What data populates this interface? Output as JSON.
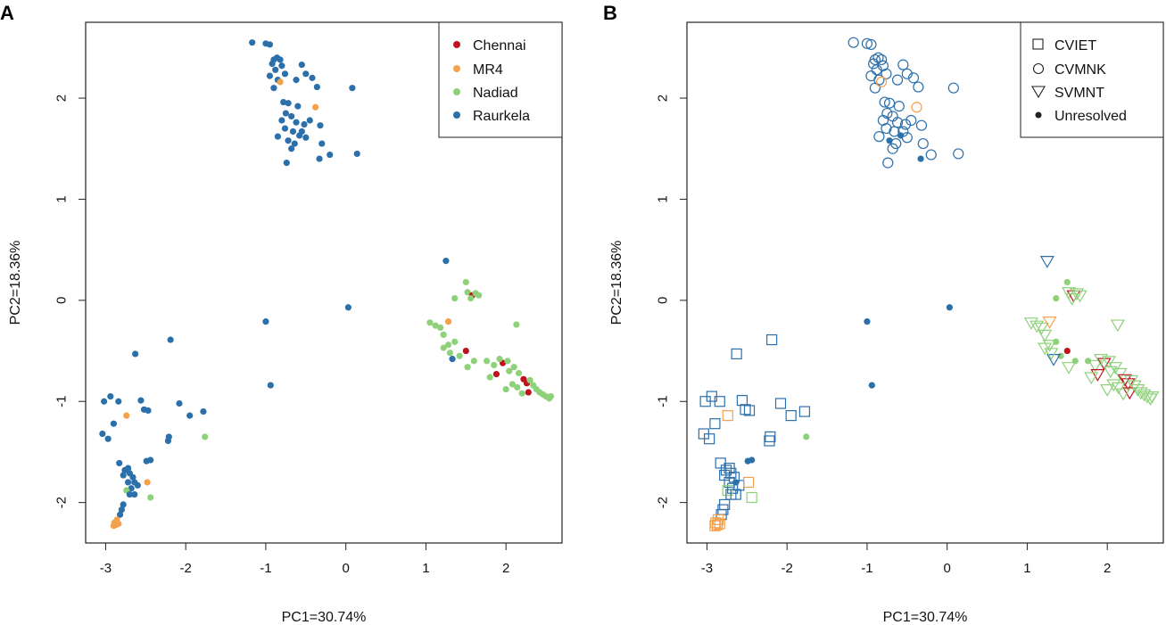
{
  "colors": {
    "Chennai": "#c1121f",
    "MR4": "#f5a04a",
    "Nadiad": "#8fd17a",
    "Raurkela": "#2b6fab",
    "axis": "#222222"
  },
  "chart_data": [
    {
      "panel": "A",
      "type": "scatter",
      "encoding": "color-by-population",
      "xlabel": "PC1=30.74%",
      "ylabel": "PC2=18.36%",
      "xlim": [
        -3.25,
        2.7
      ],
      "ylim": [
        -2.4,
        2.75
      ],
      "xticks": [
        -3,
        -2,
        -1,
        0,
        1,
        2
      ],
      "yticks": [
        -2,
        -1,
        0,
        1,
        2
      ],
      "legend": {
        "position": "top-right",
        "entries": [
          "Chennai",
          "MR4",
          "Nadiad",
          "Raurkela"
        ]
      },
      "grid": false
    },
    {
      "panel": "B",
      "type": "scatter",
      "encoding": "color-by-population, shape-by-lineage",
      "xlabel": "PC1=30.74%",
      "ylabel": "PC2=18.36%",
      "xlim": [
        -3.25,
        2.7
      ],
      "ylim": [
        -2.4,
        2.75
      ],
      "xticks": [
        -3,
        -2,
        -1,
        0,
        1,
        2
      ],
      "yticks": [
        -2,
        -1,
        0,
        1,
        2
      ],
      "legend": {
        "position": "top-right",
        "entries": [
          "CVIET",
          "CVMNK",
          "SVMNT",
          "Unresolved"
        ]
      },
      "grid": false
    }
  ],
  "points": [
    {
      "x": -1.17,
      "y": 2.55,
      "pop": "Raurkela",
      "lin": "CVMNK"
    },
    {
      "x": -1.0,
      "y": 2.54,
      "pop": "Raurkela",
      "lin": "CVMNK"
    },
    {
      "x": -0.95,
      "y": 2.53,
      "pop": "Raurkela",
      "lin": "CVMNK"
    },
    {
      "x": -0.9,
      "y": 2.38,
      "pop": "Raurkela",
      "lin": "CVMNK"
    },
    {
      "x": -0.86,
      "y": 2.4,
      "pop": "Raurkela",
      "lin": "CVMNK"
    },
    {
      "x": -0.82,
      "y": 2.38,
      "pop": "Raurkela",
      "lin": "CVMNK"
    },
    {
      "x": -0.92,
      "y": 2.34,
      "pop": "Raurkela",
      "lin": "CVMNK"
    },
    {
      "x": -0.8,
      "y": 2.32,
      "pop": "Raurkela",
      "lin": "CVMNK"
    },
    {
      "x": -0.88,
      "y": 2.28,
      "pop": "Raurkela",
      "lin": "CVMNK"
    },
    {
      "x": -0.76,
      "y": 2.24,
      "pop": "Raurkela",
      "lin": "CVMNK"
    },
    {
      "x": -0.95,
      "y": 2.22,
      "pop": "Raurkela",
      "lin": "CVMNK"
    },
    {
      "x": -0.85,
      "y": 2.18,
      "pop": "Raurkela",
      "lin": "CVMNK"
    },
    {
      "x": -0.9,
      "y": 2.1,
      "pop": "Raurkela",
      "lin": "CVMNK"
    },
    {
      "x": -0.82,
      "y": 2.16,
      "pop": "MR4",
      "lin": "CVMNK"
    },
    {
      "x": -0.55,
      "y": 2.33,
      "pop": "Raurkela",
      "lin": "CVMNK"
    },
    {
      "x": -0.5,
      "y": 2.24,
      "pop": "Raurkela",
      "lin": "CVMNK"
    },
    {
      "x": -0.42,
      "y": 2.2,
      "pop": "Raurkela",
      "lin": "CVMNK"
    },
    {
      "x": -0.36,
      "y": 2.11,
      "pop": "Raurkela",
      "lin": "CVMNK"
    },
    {
      "x": -0.62,
      "y": 2.18,
      "pop": "Raurkela",
      "lin": "CVMNK"
    },
    {
      "x": 0.08,
      "y": 2.1,
      "pop": "Raurkela",
      "lin": "CVMNK"
    },
    {
      "x": -0.78,
      "y": 1.96,
      "pop": "Raurkela",
      "lin": "CVMNK"
    },
    {
      "x": -0.72,
      "y": 1.95,
      "pop": "Raurkela",
      "lin": "CVMNK"
    },
    {
      "x": -0.6,
      "y": 1.92,
      "pop": "Raurkela",
      "lin": "CVMNK"
    },
    {
      "x": -0.38,
      "y": 1.91,
      "pop": "MR4",
      "lin": "CVMNK"
    },
    {
      "x": -0.75,
      "y": 1.85,
      "pop": "Raurkela",
      "lin": "CVMNK"
    },
    {
      "x": -0.68,
      "y": 1.82,
      "pop": "Raurkela",
      "lin": "CVMNK"
    },
    {
      "x": -0.8,
      "y": 1.78,
      "pop": "Raurkela",
      "lin": "CVMNK"
    },
    {
      "x": -0.62,
      "y": 1.76,
      "pop": "Raurkela",
      "lin": "CVMNK"
    },
    {
      "x": -0.52,
      "y": 1.74,
      "pop": "Raurkela",
      "lin": "CVMNK"
    },
    {
      "x": -0.45,
      "y": 1.78,
      "pop": "Raurkela",
      "lin": "CVMNK"
    },
    {
      "x": -0.32,
      "y": 1.73,
      "pop": "Raurkela",
      "lin": "CVMNK"
    },
    {
      "x": -0.76,
      "y": 1.7,
      "pop": "Raurkela",
      "lin": "CVMNK"
    },
    {
      "x": -0.66,
      "y": 1.67,
      "pop": "Raurkela",
      "lin": "CVMNK"
    },
    {
      "x": -0.58,
      "y": 1.63,
      "pop": "Raurkela",
      "lin": "Unresolved"
    },
    {
      "x": -0.5,
      "y": 1.61,
      "pop": "Raurkela",
      "lin": "CVMNK"
    },
    {
      "x": -0.55,
      "y": 1.67,
      "pop": "Raurkela",
      "lin": "CVMNK"
    },
    {
      "x": -0.85,
      "y": 1.62,
      "pop": "Raurkela",
      "lin": "CVMNK"
    },
    {
      "x": -0.72,
      "y": 1.58,
      "pop": "Raurkela",
      "lin": "Unresolved"
    },
    {
      "x": -0.64,
      "y": 1.55,
      "pop": "Raurkela",
      "lin": "CVMNK"
    },
    {
      "x": -0.3,
      "y": 1.55,
      "pop": "Raurkela",
      "lin": "CVMNK"
    },
    {
      "x": -0.68,
      "y": 1.5,
      "pop": "Raurkela",
      "lin": "CVMNK"
    },
    {
      "x": -0.2,
      "y": 1.44,
      "pop": "Raurkela",
      "lin": "CVMNK"
    },
    {
      "x": -0.33,
      "y": 1.4,
      "pop": "Raurkela",
      "lin": "Unresolved"
    },
    {
      "x": -0.74,
      "y": 1.36,
      "pop": "Raurkela",
      "lin": "CVMNK"
    },
    {
      "x": 0.14,
      "y": 1.45,
      "pop": "Raurkela",
      "lin": "CVMNK"
    },
    {
      "x": -1.0,
      "y": -0.21,
      "pop": "Raurkela",
      "lin": "Unresolved"
    },
    {
      "x": 0.03,
      "y": -0.07,
      "pop": "Raurkela",
      "lin": "Unresolved"
    },
    {
      "x": -0.94,
      "y": -0.84,
      "pop": "Raurkela",
      "lin": "Unresolved"
    },
    {
      "x": 1.25,
      "y": 0.39,
      "pop": "Raurkela",
      "lin": "SVMNT"
    },
    {
      "x": 1.5,
      "y": 0.18,
      "pop": "Nadiad",
      "lin": "Unresolved"
    },
    {
      "x": 1.36,
      "y": 0.02,
      "pop": "Nadiad",
      "lin": "Unresolved"
    },
    {
      "x": 1.52,
      "y": 0.08,
      "pop": "Nadiad",
      "lin": "SVMNT"
    },
    {
      "x": 1.58,
      "y": 0.05,
      "pop": "Chennai",
      "lin": "SVMNT"
    },
    {
      "x": 1.62,
      "y": 0.07,
      "pop": "Nadiad",
      "lin": "SVMNT"
    },
    {
      "x": 1.66,
      "y": 0.05,
      "pop": "Nadiad",
      "lin": "SVMNT"
    },
    {
      "x": 1.56,
      "y": 0.02,
      "pop": "Nadiad",
      "lin": "SVMNT"
    },
    {
      "x": 1.05,
      "y": -0.22,
      "pop": "Nadiad",
      "lin": "SVMNT"
    },
    {
      "x": 1.12,
      "y": -0.25,
      "pop": "Nadiad",
      "lin": "SVMNT"
    },
    {
      "x": 1.18,
      "y": -0.27,
      "pop": "Nadiad",
      "lin": "SVMNT"
    },
    {
      "x": 1.28,
      "y": -0.21,
      "pop": "MR4",
      "lin": "SVMNT"
    },
    {
      "x": 1.22,
      "y": -0.34,
      "pop": "Nadiad",
      "lin": "SVMNT"
    },
    {
      "x": 2.13,
      "y": -0.24,
      "pop": "Nadiad",
      "lin": "SVMNT"
    },
    {
      "x": 1.28,
      "y": -0.44,
      "pop": "Nadiad",
      "lin": "SVMNT"
    },
    {
      "x": 1.36,
      "y": -0.41,
      "pop": "Nadiad",
      "lin": "Unresolved"
    },
    {
      "x": 1.22,
      "y": -0.47,
      "pop": "Nadiad",
      "lin": "SVMNT"
    },
    {
      "x": 1.5,
      "y": -0.5,
      "pop": "Chennai",
      "lin": "Unresolved"
    },
    {
      "x": 1.42,
      "y": -0.55,
      "pop": "Nadiad",
      "lin": "Unresolved"
    },
    {
      "x": 1.33,
      "y": -0.58,
      "pop": "Raurkela",
      "lin": "SVMNT"
    },
    {
      "x": 1.3,
      "y": -0.52,
      "pop": "Nadiad",
      "lin": "SVMNT"
    },
    {
      "x": 1.6,
      "y": -0.6,
      "pop": "Nadiad",
      "lin": "Unresolved"
    },
    {
      "x": 1.52,
      "y": -0.66,
      "pop": "Nadiad",
      "lin": "SVMNT"
    },
    {
      "x": 1.76,
      "y": -0.6,
      "pop": "Nadiad",
      "lin": "Unresolved"
    },
    {
      "x": 1.85,
      "y": -0.64,
      "pop": "Nadiad",
      "lin": "SVMNT"
    },
    {
      "x": 1.96,
      "y": -0.62,
      "pop": "Chennai",
      "lin": "SVMNT"
    },
    {
      "x": 2.02,
      "y": -0.6,
      "pop": "Nadiad",
      "lin": "SVMNT"
    },
    {
      "x": 1.92,
      "y": -0.58,
      "pop": "Nadiad",
      "lin": "SVMNT"
    },
    {
      "x": 1.88,
      "y": -0.73,
      "pop": "Chennai",
      "lin": "SVMNT"
    },
    {
      "x": 1.8,
      "y": -0.76,
      "pop": "Nadiad",
      "lin": "SVMNT"
    },
    {
      "x": 2.04,
      "y": -0.7,
      "pop": "Nadiad",
      "lin": "SVMNT"
    },
    {
      "x": 2.1,
      "y": -0.66,
      "pop": "Nadiad",
      "lin": "SVMNT"
    },
    {
      "x": 2.16,
      "y": -0.72,
      "pop": "Nadiad",
      "lin": "SVMNT"
    },
    {
      "x": 2.22,
      "y": -0.78,
      "pop": "Chennai",
      "lin": "SVMNT"
    },
    {
      "x": 2.26,
      "y": -0.82,
      "pop": "Chennai",
      "lin": "SVMNT"
    },
    {
      "x": 2.3,
      "y": -0.79,
      "pop": "Nadiad",
      "lin": "SVMNT"
    },
    {
      "x": 2.34,
      "y": -0.84,
      "pop": "Nadiad",
      "lin": "SVMNT"
    },
    {
      "x": 2.08,
      "y": -0.83,
      "pop": "Nadiad",
      "lin": "SVMNT"
    },
    {
      "x": 2.0,
      "y": -0.88,
      "pop": "Nadiad",
      "lin": "SVMNT"
    },
    {
      "x": 2.14,
      "y": -0.86,
      "pop": "Nadiad",
      "lin": "SVMNT"
    },
    {
      "x": 2.28,
      "y": -0.91,
      "pop": "Chennai",
      "lin": "SVMNT"
    },
    {
      "x": 2.2,
      "y": -0.92,
      "pop": "Nadiad",
      "lin": "SVMNT"
    },
    {
      "x": 2.38,
      "y": -0.88,
      "pop": "Nadiad",
      "lin": "SVMNT"
    },
    {
      "x": 2.42,
      "y": -0.91,
      "pop": "Nadiad",
      "lin": "SVMNT"
    },
    {
      "x": 2.46,
      "y": -0.93,
      "pop": "Nadiad",
      "lin": "SVMNT"
    },
    {
      "x": 2.5,
      "y": -0.95,
      "pop": "Nadiad",
      "lin": "SVMNT"
    },
    {
      "x": 2.54,
      "y": -0.97,
      "pop": "Nadiad",
      "lin": "SVMNT"
    },
    {
      "x": 2.56,
      "y": -0.95,
      "pop": "Nadiad",
      "lin": "SVMNT"
    },
    {
      "x": -2.63,
      "y": -0.53,
      "pop": "Raurkela",
      "lin": "CVIET"
    },
    {
      "x": -2.19,
      "y": -0.39,
      "pop": "Raurkela",
      "lin": "CVIET"
    },
    {
      "x": -3.02,
      "y": -1.0,
      "pop": "Raurkela",
      "lin": "CVIET"
    },
    {
      "x": -2.94,
      "y": -0.95,
      "pop": "Raurkela",
      "lin": "CVIET"
    },
    {
      "x": -2.84,
      "y": -1.0,
      "pop": "Raurkela",
      "lin": "CVIET"
    },
    {
      "x": -2.56,
      "y": -0.99,
      "pop": "Raurkela",
      "lin": "CVIET"
    },
    {
      "x": -2.52,
      "y": -1.08,
      "pop": "Raurkela",
      "lin": "CVIET"
    },
    {
      "x": -2.47,
      "y": -1.09,
      "pop": "Raurkela",
      "lin": "CVIET"
    },
    {
      "x": -2.74,
      "y": -1.14,
      "pop": "MR4",
      "lin": "CVIET"
    },
    {
      "x": -2.08,
      "y": -1.02,
      "pop": "Raurkela",
      "lin": "CVIET"
    },
    {
      "x": -1.95,
      "y": -1.14,
      "pop": "Raurkela",
      "lin": "CVIET"
    },
    {
      "x": -1.78,
      "y": -1.1,
      "pop": "Raurkela",
      "lin": "CVIET"
    },
    {
      "x": -2.9,
      "y": -1.22,
      "pop": "Raurkela",
      "lin": "CVIET"
    },
    {
      "x": -3.04,
      "y": -1.32,
      "pop": "Raurkela",
      "lin": "CVIET"
    },
    {
      "x": -2.97,
      "y": -1.37,
      "pop": "Raurkela",
      "lin": "CVIET"
    },
    {
      "x": -2.21,
      "y": -1.35,
      "pop": "Raurkela",
      "lin": "CVIET"
    },
    {
      "x": -2.22,
      "y": -1.39,
      "pop": "Raurkela",
      "lin": "CVIET"
    },
    {
      "x": -1.76,
      "y": -1.35,
      "pop": "Nadiad",
      "lin": "Unresolved"
    },
    {
      "x": -2.49,
      "y": -1.59,
      "pop": "Raurkela",
      "lin": "Unresolved"
    },
    {
      "x": -2.44,
      "y": -1.58,
      "pop": "Raurkela",
      "lin": "Unresolved"
    },
    {
      "x": -2.83,
      "y": -1.61,
      "pop": "Raurkela",
      "lin": "CVIET"
    },
    {
      "x": -2.76,
      "y": -1.68,
      "pop": "Raurkela",
      "lin": "CVIET"
    },
    {
      "x": -2.72,
      "y": -1.66,
      "pop": "Raurkela",
      "lin": "CVIET"
    },
    {
      "x": -2.78,
      "y": -1.73,
      "pop": "Raurkela",
      "lin": "CVIET"
    },
    {
      "x": -2.7,
      "y": -1.71,
      "pop": "Raurkela",
      "lin": "CVIET"
    },
    {
      "x": -2.66,
      "y": -1.75,
      "pop": "Raurkela",
      "lin": "CVIET"
    },
    {
      "x": -2.72,
      "y": -1.8,
      "pop": "Raurkela",
      "lin": "CVIET"
    },
    {
      "x": -2.64,
      "y": -1.8,
      "pop": "Raurkela",
      "lin": "Unresolved"
    },
    {
      "x": -2.6,
      "y": -1.83,
      "pop": "Raurkela",
      "lin": "CVIET"
    },
    {
      "x": -2.68,
      "y": -1.86,
      "pop": "Raurkela",
      "lin": "CVIET"
    },
    {
      "x": -2.48,
      "y": -1.8,
      "pop": "MR4",
      "lin": "CVIET"
    },
    {
      "x": -2.74,
      "y": -1.88,
      "pop": "Nadiad",
      "lin": "CVIET"
    },
    {
      "x": -2.7,
      "y": -1.92,
      "pop": "Raurkela",
      "lin": "CVIET"
    },
    {
      "x": -2.64,
      "y": -1.92,
      "pop": "Raurkela",
      "lin": "CVIET"
    },
    {
      "x": -2.44,
      "y": -1.95,
      "pop": "Nadiad",
      "lin": "CVIET"
    },
    {
      "x": -2.78,
      "y": -2.02,
      "pop": "Raurkela",
      "lin": "CVIET"
    },
    {
      "x": -2.8,
      "y": -2.07,
      "pop": "Raurkela",
      "lin": "CVIET"
    },
    {
      "x": -2.82,
      "y": -2.12,
      "pop": "Raurkela",
      "lin": "CVIET"
    },
    {
      "x": -2.86,
      "y": -2.17,
      "pop": "MR4",
      "lin": "CVIET"
    },
    {
      "x": -2.89,
      "y": -2.2,
      "pop": "MR4",
      "lin": "CVIET"
    },
    {
      "x": -2.87,
      "y": -2.22,
      "pop": "MR4",
      "lin": "CVIET"
    },
    {
      "x": -2.84,
      "y": -2.21,
      "pop": "MR4",
      "lin": "CVIET"
    },
    {
      "x": -2.9,
      "y": -2.23,
      "pop": "MR4",
      "lin": "CVIET"
    }
  ]
}
